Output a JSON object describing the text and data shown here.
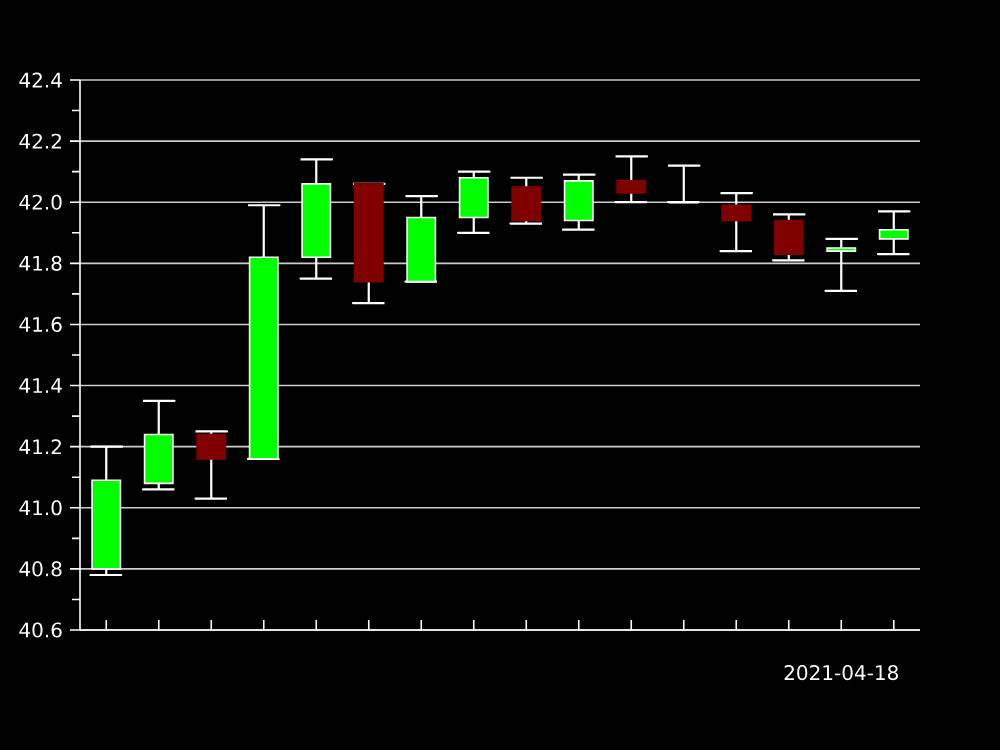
{
  "chart_data": {
    "type": "candlestick",
    "categories": [
      null,
      null,
      null,
      null,
      null,
      null,
      null,
      null,
      null,
      null,
      null,
      null,
      null,
      null,
      "2021-04-18",
      null
    ],
    "ohlc": [
      [
        40.8,
        41.2,
        40.78,
        41.09
      ],
      [
        41.08,
        41.35,
        41.06,
        41.24
      ],
      [
        41.24,
        41.25,
        41.03,
        41.16
      ],
      [
        41.16,
        41.99,
        41.16,
        41.82
      ],
      [
        41.82,
        42.14,
        41.75,
        42.06
      ],
      [
        42.06,
        42.06,
        41.67,
        41.74
      ],
      [
        41.74,
        42.02,
        41.74,
        41.95
      ],
      [
        41.95,
        42.1,
        41.9,
        42.08
      ],
      [
        42.05,
        42.08,
        41.93,
        41.94
      ],
      [
        41.94,
        42.09,
        41.91,
        42.07
      ],
      [
        42.07,
        42.15,
        42.0,
        42.03
      ],
      [
        42.0,
        42.12,
        42.0,
        42.0
      ],
      [
        41.99,
        42.03,
        41.84,
        41.94
      ],
      [
        41.94,
        41.96,
        41.81,
        41.83
      ],
      [
        41.84,
        41.88,
        41.71,
        41.85
      ],
      [
        41.88,
        41.97,
        41.83,
        41.91
      ]
    ],
    "colors": [
      "#00ff00",
      "#00ff00",
      "#800000",
      "#00ff00",
      "#00ff00",
      "#800000",
      "#00ff00",
      "#00ff00",
      "#800000",
      "#00ff00",
      "#800000",
      "#ffffff",
      "#800000",
      "#800000",
      "#00ff00",
      "#00ff00"
    ],
    "ylim": [
      40.6,
      42.4
    ],
    "yticks": [
      {
        "value": 40.6,
        "label": "40.6"
      },
      {
        "value": 40.8,
        "label": "40.8"
      },
      {
        "value": 41.0,
        "label": "41.0"
      },
      {
        "value": 41.2,
        "label": "41.2"
      },
      {
        "value": 41.4,
        "label": "41.4"
      },
      {
        "value": 41.6,
        "label": "41.6"
      },
      {
        "value": 41.8,
        "label": "41.8"
      },
      {
        "value": 42.0,
        "label": "42.0"
      },
      {
        "value": 42.2,
        "label": "42.2"
      },
      {
        "value": 42.4,
        "label": "42.4"
      }
    ],
    "grid": "y"
  }
}
